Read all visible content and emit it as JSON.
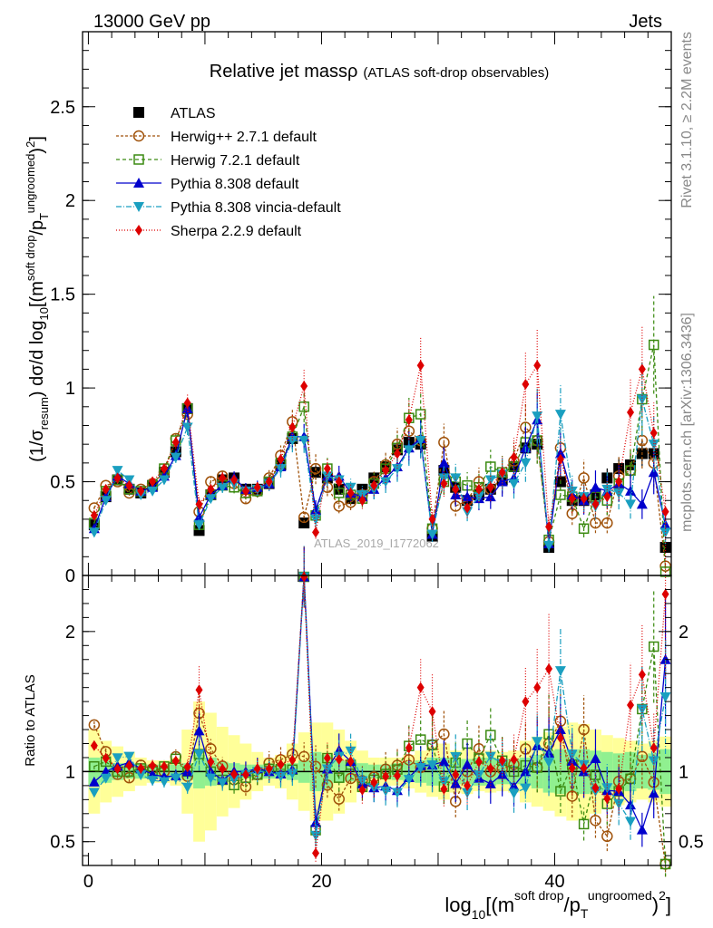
{
  "header": {
    "left": "13000 GeV pp",
    "right": "Jets"
  },
  "side": {
    "rivet": "Rivet 3.1.10, ≥ 2.2M events",
    "mcplots": "mcplots.cern.ch [arXiv:1306.3436]"
  },
  "watermark": "ATLAS_2019_I1772062",
  "chart_data": [
    {
      "type": "line",
      "panel": "main",
      "title": "Relative jet massρ",
      "subtitle": "(ATLAS soft-drop observables)",
      "ylabel": "(1/σ_resum) dσ/d log10[(m^soft drop/p_T^ungroomed)^2]",
      "ylim": [
        0,
        2.9
      ],
      "xlim": [
        -0.5,
        50
      ],
      "yticks": [
        "0",
        "0.5",
        "1",
        "1.5",
        "2",
        "2.5"
      ],
      "ytick_values": [
        0,
        0.5,
        1,
        1.5,
        2,
        2.5
      ],
      "legend_position": "top-left",
      "x": [
        0.5,
        1.5,
        2.5,
        3.5,
        4.5,
        5.5,
        6.5,
        7.5,
        8.5,
        9.5,
        10.5,
        11.5,
        12.5,
        13.5,
        14.5,
        15.5,
        16.5,
        17.5,
        18.5,
        19.5,
        20.5,
        21.5,
        22.5,
        23.5,
        24.5,
        25.5,
        26.5,
        27.5,
        28.5,
        29.5,
        30.5,
        31.5,
        32.5,
        33.5,
        34.5,
        35.5,
        36.5,
        37.5,
        38.5,
        39.5,
        40.5,
        41.5,
        42.5,
        43.5,
        44.5,
        45.5,
        46.5,
        47.5,
        48.5,
        49.5
      ],
      "series": [
        {
          "name": "ATLAS",
          "color": "#000000",
          "marker": "square-filled",
          "dash": "none",
          "values": [
            0.27,
            0.42,
            0.51,
            0.46,
            0.44,
            0.48,
            0.55,
            0.66,
            0.89,
            0.24,
            0.43,
            0.51,
            0.52,
            0.46,
            0.46,
            0.49,
            0.59,
            0.73,
            0.28,
            0.55,
            0.52,
            0.46,
            0.41,
            0.46,
            0.52,
            0.58,
            0.67,
            0.71,
            0.7,
            0.21,
            0.56,
            0.47,
            0.4,
            0.43,
            0.46,
            0.51,
            0.58,
            0.68,
            0.7,
            0.15,
            0.5,
            0.4,
            0.4,
            0.43,
            0.52,
            0.57,
            0.59,
            0.65,
            0.65,
            0.15
          ]
        },
        {
          "name": "Herwig++ 2.7.1 default",
          "color": "#a0520a",
          "marker": "circle-open",
          "dash": "3,2",
          "values": [
            0.36,
            0.48,
            0.5,
            0.44,
            0.46,
            0.49,
            0.55,
            0.73,
            0.86,
            0.34,
            0.5,
            0.53,
            0.49,
            0.41,
            0.45,
            0.52,
            0.64,
            0.82,
            0.31,
            0.57,
            0.47,
            0.37,
            0.39,
            0.43,
            0.5,
            0.59,
            0.7,
            0.77,
            0.72,
            0.25,
            0.71,
            0.37,
            0.4,
            0.5,
            0.46,
            0.52,
            0.61,
            0.79,
            0.72,
            0.18,
            0.68,
            0.33,
            0.52,
            0.28,
            0.28,
            0.53,
            0.56,
            0.72,
            0.6,
            0.05
          ]
        },
        {
          "name": "Herwig 7.2.1 default",
          "color": "#3a8a10",
          "marker": "square-open",
          "dash": "4,3",
          "values": [
            0.28,
            0.45,
            0.51,
            0.46,
            0.45,
            0.48,
            0.57,
            0.72,
            0.89,
            0.27,
            0.43,
            0.48,
            0.47,
            0.44,
            0.45,
            0.5,
            0.6,
            0.74,
            0.9,
            0.32,
            0.57,
            0.44,
            0.43,
            0.41,
            0.49,
            0.57,
            0.68,
            0.84,
            0.86,
            0.25,
            0.5,
            0.5,
            0.48,
            0.47,
            0.58,
            0.55,
            0.58,
            0.71,
            0.72,
            0.19,
            0.43,
            0.42,
            0.25,
            0.42,
            0.4,
            0.49,
            0.56,
            0.94,
            1.23,
            0.02
          ]
        },
        {
          "name": "Pythia 8.308 default",
          "color": "#0000cc",
          "marker": "triangle-up-filled",
          "dash": "none",
          "values": [
            0.25,
            0.42,
            0.53,
            0.49,
            0.45,
            0.47,
            0.53,
            0.64,
            0.89,
            0.31,
            0.43,
            0.48,
            0.52,
            0.46,
            0.47,
            0.49,
            0.58,
            0.74,
            0.74,
            0.35,
            0.53,
            0.53,
            0.44,
            0.42,
            0.46,
            0.52,
            0.58,
            0.68,
            0.73,
            0.22,
            0.6,
            0.43,
            0.42,
            0.41,
            0.42,
            0.5,
            0.52,
            0.68,
            0.83,
            0.17,
            0.65,
            0.43,
            0.4,
            0.47,
            0.45,
            0.49,
            0.45,
            0.38,
            0.55,
            0.27
          ]
        },
        {
          "name": "Pythia 8.308 vincia-default",
          "color": "#1a9fc0",
          "marker": "triangle-down-filled",
          "dash": "6,2,1,2",
          "values": [
            0.23,
            0.4,
            0.56,
            0.51,
            0.43,
            0.45,
            0.51,
            0.63,
            0.79,
            0.27,
            0.41,
            0.47,
            0.49,
            0.45,
            0.46,
            0.49,
            0.57,
            0.72,
            0.72,
            0.3,
            0.53,
            0.51,
            0.47,
            0.43,
            0.46,
            0.5,
            0.57,
            0.67,
            0.72,
            0.22,
            0.52,
            0.52,
            0.34,
            0.42,
            0.51,
            0.54,
            0.49,
            0.6,
            0.85,
            0.16,
            0.86,
            0.45,
            0.42,
            0.37,
            0.46,
            0.44,
            0.38,
            0.94,
            0.7,
            0.23
          ]
        },
        {
          "name": "Sherpa 2.2.9 default",
          "color": "#dd0000",
          "marker": "diamond-filled",
          "dash": "1,2",
          "values": [
            0.32,
            0.46,
            0.52,
            0.48,
            0.45,
            0.5,
            0.57,
            0.71,
            0.92,
            0.38,
            0.46,
            0.52,
            0.51,
            0.45,
            0.47,
            0.5,
            0.62,
            0.79,
            1.01,
            0.23,
            0.57,
            0.5,
            0.44,
            0.4,
            0.48,
            0.56,
            0.65,
            0.83,
            1.12,
            0.3,
            0.49,
            0.46,
            0.36,
            0.46,
            0.47,
            0.55,
            0.63,
            1.02,
            1.12,
            0.26,
            0.62,
            0.41,
            0.41,
            0.38,
            0.42,
            0.5,
            0.87,
            1.1,
            0.76,
            0.34
          ]
        }
      ]
    },
    {
      "type": "line",
      "panel": "ratio",
      "ylabel": "Ratio to ATLAS",
      "xlabel": "log10[(m^soft drop/p_T^ungroomed)^2]",
      "ylim": [
        0.33,
        2.4
      ],
      "yticks": [
        "0.5",
        "1",
        "2"
      ],
      "ytick_values": [
        0.5,
        1,
        2
      ],
      "xticks": [
        "0",
        "20",
        "40"
      ],
      "xtick_values": [
        0,
        20,
        40
      ],
      "band_inner_halfwidth": [
        0.1,
        0.08,
        0.06,
        0.05,
        0.05,
        0.05,
        0.05,
        0.05,
        0.06,
        0.12,
        0.1,
        0.07,
        0.06,
        0.05,
        0.05,
        0.05,
        0.05,
        0.06,
        0.08,
        0.14,
        0.12,
        0.08,
        0.07,
        0.06,
        0.05,
        0.05,
        0.06,
        0.07,
        0.08,
        0.1,
        0.1,
        0.09,
        0.09,
        0.1,
        0.1,
        0.09,
        0.09,
        0.1,
        0.12,
        0.15,
        0.16,
        0.15,
        0.16,
        0.15,
        0.14,
        0.13,
        0.14,
        0.12,
        0.13,
        0.16
      ],
      "band_outer_halfwidth": [
        0.3,
        0.22,
        0.18,
        0.14,
        0.1,
        0.08,
        0.08,
        0.1,
        0.3,
        0.5,
        0.42,
        0.32,
        0.26,
        0.2,
        0.14,
        0.1,
        0.12,
        0.2,
        0.28,
        0.35,
        0.35,
        0.3,
        0.22,
        0.15,
        0.1,
        0.1,
        0.1,
        0.12,
        0.15,
        0.18,
        0.2,
        0.15,
        0.16,
        0.14,
        0.15,
        0.14,
        0.15,
        0.22,
        0.25,
        0.28,
        0.32,
        0.35,
        0.34,
        0.3,
        0.26,
        0.24,
        0.22,
        0.2,
        0.22,
        0.25
      ]
    }
  ]
}
